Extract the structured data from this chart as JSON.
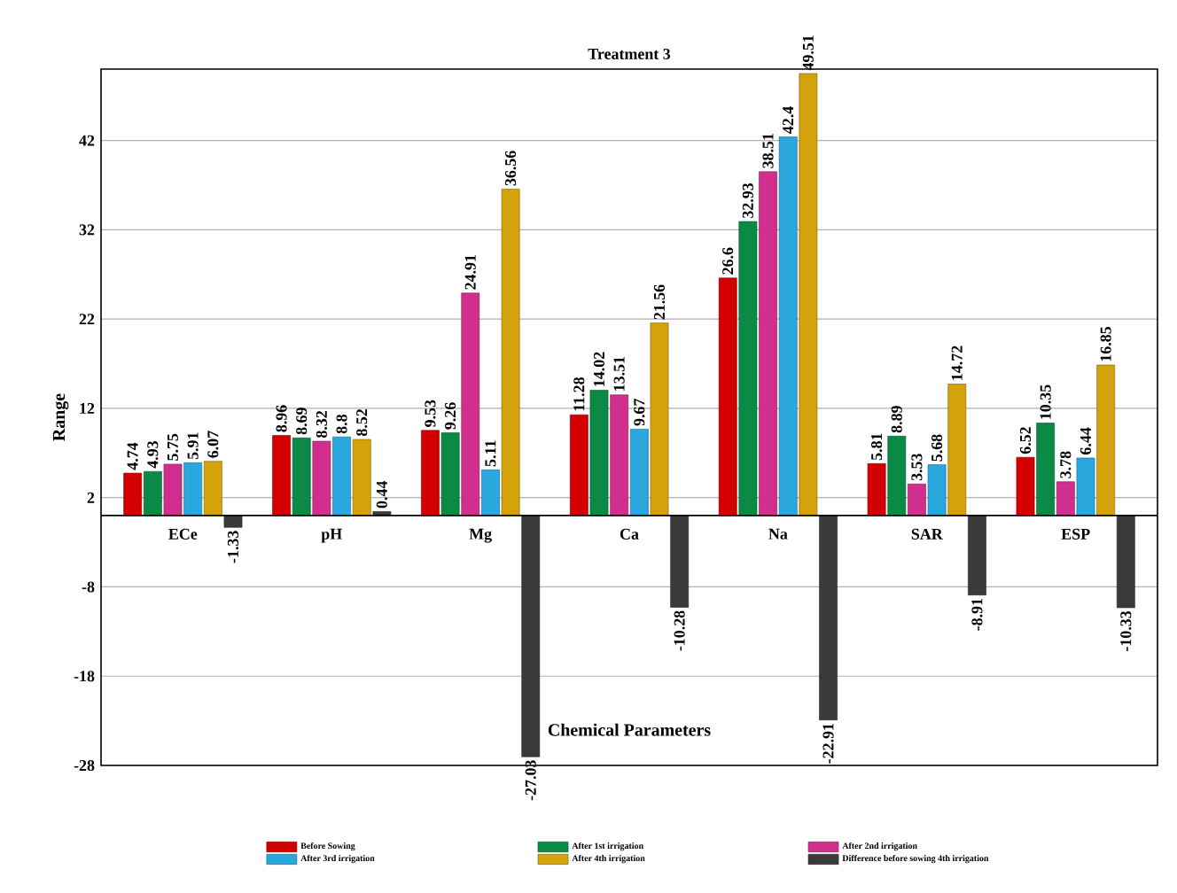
{
  "chart_data": {
    "type": "bar",
    "title": "Treatment 3",
    "xlabel": "Chemical Parameters",
    "ylabel": "Range",
    "categories": [
      "ECe",
      "pH",
      "Mg",
      "Ca",
      "Na",
      "SAR",
      "ESP"
    ],
    "series": [
      {
        "name": "Before Sowing",
        "color": "#d40000",
        "values": [
          4.74,
          8.96,
          9.53,
          11.28,
          26.6,
          5.81,
          6.52
        ]
      },
      {
        "name": "After 1st irrigation",
        "color": "#0a8a45",
        "values": [
          4.93,
          8.69,
          9.26,
          14.02,
          32.93,
          8.89,
          10.35
        ]
      },
      {
        "name": "After 2nd irrigation",
        "color": "#d02f8e",
        "values": [
          5.75,
          8.32,
          24.91,
          13.51,
          38.51,
          3.53,
          3.78
        ]
      },
      {
        "name": "After 3rd irrigation",
        "color": "#2aa7dc",
        "values": [
          5.91,
          8.8,
          5.11,
          9.67,
          42.4,
          5.68,
          6.44
        ]
      },
      {
        "name": "After 4th irrigation",
        "color": "#d4a20a",
        "values": [
          6.07,
          8.52,
          36.56,
          21.56,
          49.51,
          14.72,
          16.85
        ]
      },
      {
        "name": "Difference before sowing 4th irrigation",
        "color": "#3a3a3a",
        "values": [
          -1.33,
          0.44,
          -27.03,
          -10.28,
          -22.91,
          -8.91,
          -10.33
        ]
      }
    ],
    "ylim": [
      -28,
      50
    ],
    "yticks": [
      -28,
      -18,
      -8,
      2,
      12,
      22,
      32,
      42
    ],
    "grid": "y",
    "legend": "bottom",
    "data_labels": true
  }
}
